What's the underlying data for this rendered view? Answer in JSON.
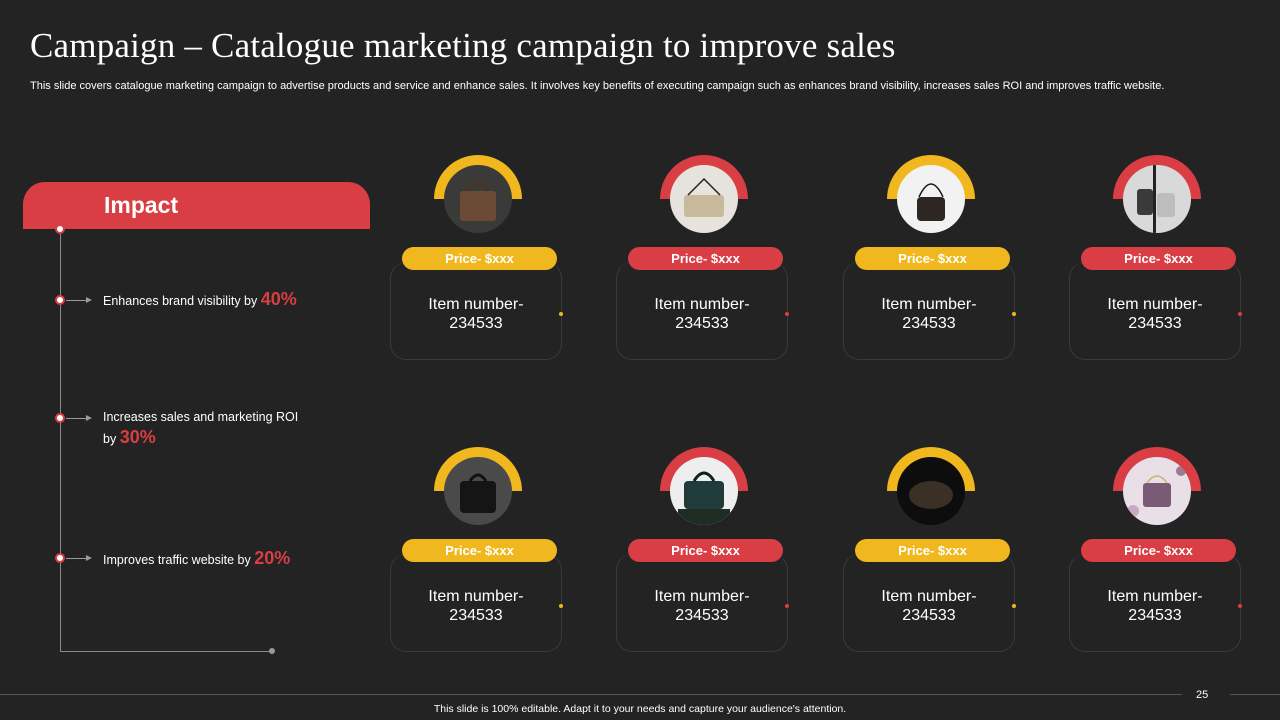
{
  "title": "Campaign – Catalogue marketing campaign to improve sales",
  "subtitle": "This slide covers catalogue marketing campaign to advertise products and service and enhance sales. It involves key benefits of executing campaign such as enhances brand visibility, increases sales ROI and improves traffic website.",
  "impact": {
    "heading": "Impact",
    "benefits": [
      {
        "text": "Enhances brand visibility by ",
        "value": "40%"
      },
      {
        "text": "Increases sales and marketing ROI by ",
        "value": "30%"
      },
      {
        "text": "Improves traffic website by ",
        "value": "20%"
      }
    ]
  },
  "products": [
    {
      "price": "Price- $xxx",
      "item": "Item number-\n234533",
      "accent": "#f0b81e",
      "icon": "brown-tote-bag-icon"
    },
    {
      "price": "Price- $xxx",
      "item": "Item number-\n234533",
      "accent": "#d93e44",
      "icon": "cream-clutch-bag-icon"
    },
    {
      "price": "Price- $xxx",
      "item": "Item number-\n234533",
      "accent": "#f0b81e",
      "icon": "patterned-shoulder-bag-icon"
    },
    {
      "price": "Price- $xxx",
      "item": "Item number-\n234533",
      "accent": "#d93e44",
      "icon": "hanging-bags-icon"
    },
    {
      "price": "Price- $xxx",
      "item": "Item number-\n234533",
      "accent": "#f0b81e",
      "icon": "black-sequin-bag-icon"
    },
    {
      "price": "Price- $xxx",
      "item": "Item number-\n234533",
      "accent": "#d93e44",
      "icon": "dark-green-handbag-icon"
    },
    {
      "price": "Price- $xxx",
      "item": "Item number-\n234533",
      "accent": "#f0b81e",
      "icon": "black-purse-icon"
    },
    {
      "price": "Price- $xxx",
      "item": "Item number-\n234533",
      "accent": "#d93e44",
      "icon": "quilted-chain-bag-icon"
    }
  ],
  "page_number": "25",
  "footer": "This slide is 100% editable.  Adapt it to your needs and capture your audience's attention.",
  "colors": {
    "red": "#d93e44",
    "yellow": "#f0b81e",
    "background": "#232323"
  }
}
